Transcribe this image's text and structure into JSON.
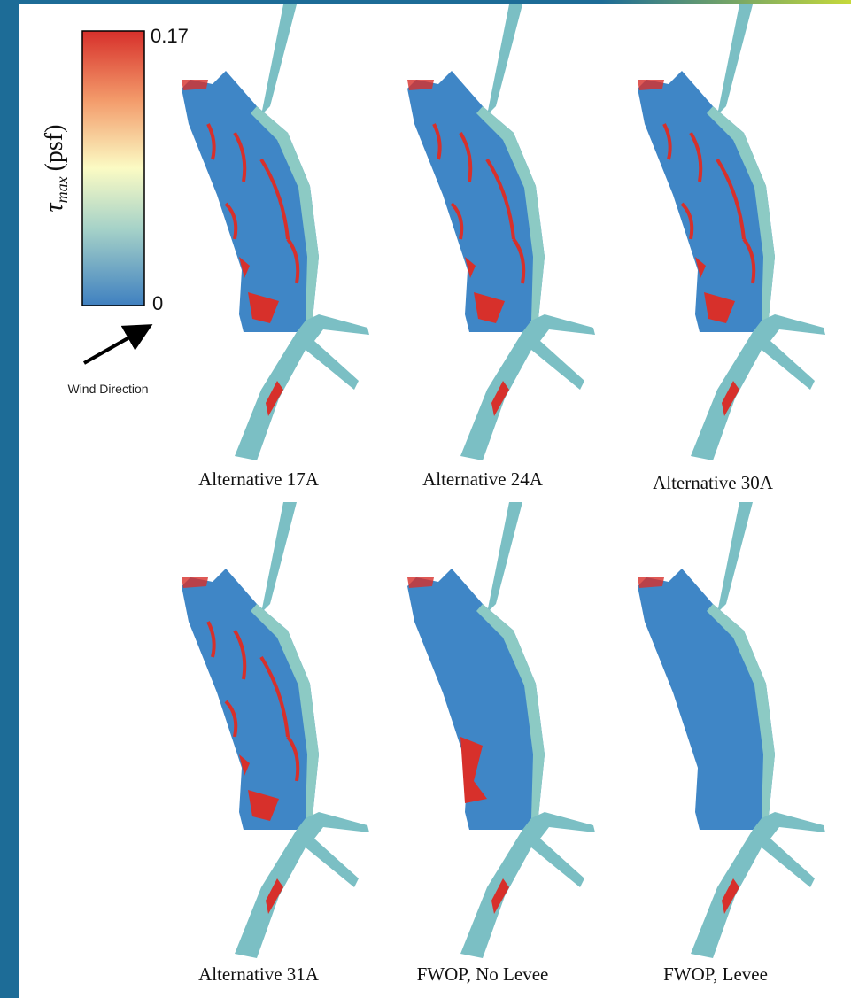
{
  "colorbar": {
    "symbol": "τ",
    "subscript": "max",
    "unit": "(psf)",
    "max_label": "0.17",
    "min_label": "0"
  },
  "wind_label": "Wind Direction",
  "panels": [
    {
      "caption": "Alternative 17A"
    },
    {
      "caption": "Alternative 24A"
    },
    {
      "caption": "Alternative 30A"
    },
    {
      "caption": "Alternative 31A"
    },
    {
      "caption": "FWOP, No Levee"
    },
    {
      "caption": "FWOP, Levee"
    }
  ]
}
